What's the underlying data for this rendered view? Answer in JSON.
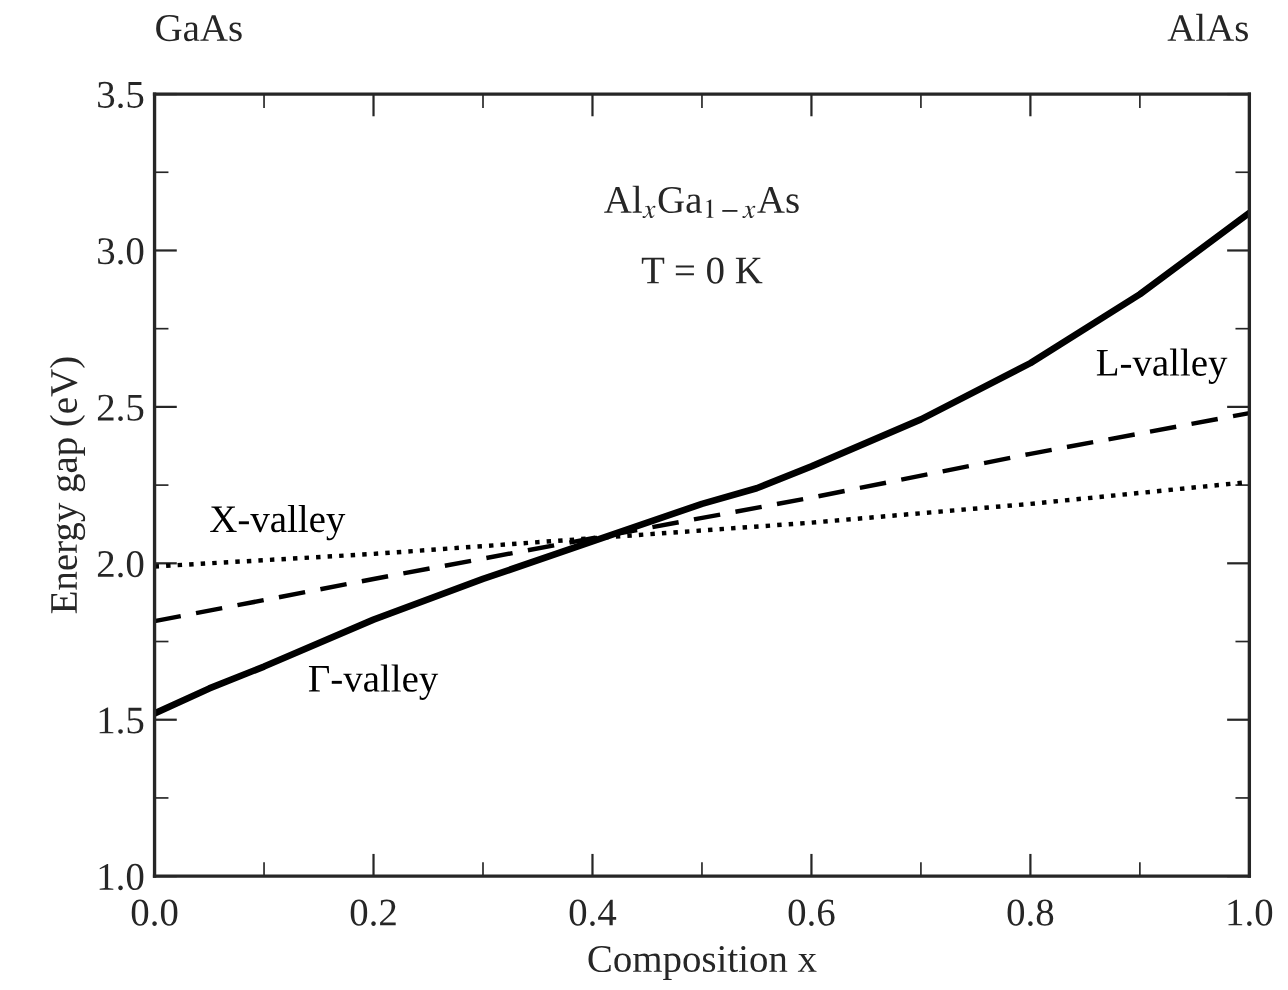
{
  "chart_data": {
    "type": "line",
    "xlabel": "Composition x",
    "ylabel": "Energy gap (eV)",
    "annotations": [
      "GaAs",
      "AlAs",
      "Al$_{x}$Ga$_{1−x}$As",
      "T = 0 K"
    ],
    "series": [
      {
        "name": "Γ-valley",
        "color": "#000000",
        "line_style": "solid",
        "x": [
          0,
          0.05,
          0.1,
          0.2,
          0.3,
          0.4,
          0.5,
          0.55,
          0.6,
          0.7,
          0.8,
          0.9,
          1.0
        ],
        "values": [
          1.52,
          1.6,
          1.67,
          1.82,
          1.95,
          2.07,
          2.19,
          2.24,
          2.31,
          2.46,
          2.64,
          2.86,
          3.12
        ]
      },
      {
        "name": "L-valley",
        "color": "#000000",
        "line_style": "dashed",
        "x": [
          0,
          0.2,
          0.4,
          0.6,
          0.8,
          1.0
        ],
        "values": [
          1.815,
          1.95,
          2.08,
          2.21,
          2.35,
          2.48
        ]
      },
      {
        "name": "X-valley",
        "color": "#000000",
        "line_style": "dotted",
        "x": [
          0,
          0.2,
          0.4,
          0.6,
          0.8,
          1.0
        ],
        "values": [
          1.99,
          2.03,
          2.08,
          2.13,
          2.19,
          2.26
        ]
      }
    ],
    "xlim": [
      0,
      1
    ],
    "xticks": [
      {
        "value": 0,
        "label": "0.0"
      },
      0.2,
      0.4,
      0.6,
      0.8,
      {
        "value": 1,
        "label": "1.0"
      }
    ],
    "ylim": [
      1,
      3.5
    ],
    "yticks": [
      {
        "value": 1,
        "label": "1.0"
      },
      1.5,
      {
        "value": 2,
        "label": "2.0"
      },
      2.5,
      {
        "value": 3,
        "label": "3.0"
      },
      3.5
    ],
    "grid": false,
    "legend": false,
    "marker": "none"
  }
}
